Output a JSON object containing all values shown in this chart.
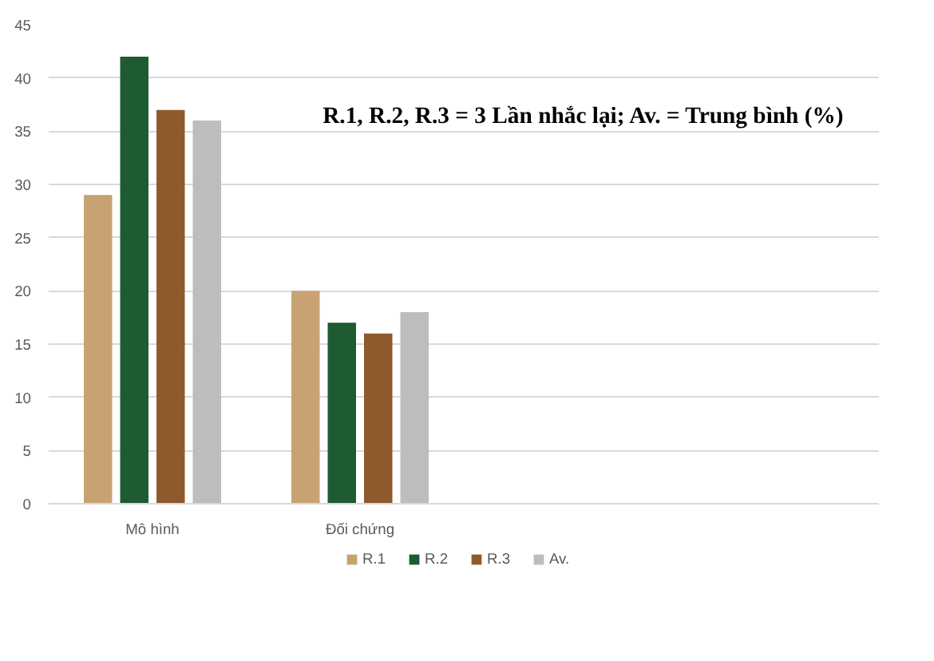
{
  "chart_data": {
    "type": "bar",
    "categories": [
      "Mô hình",
      "Đối chứng",
      null,
      null
    ],
    "series": [
      {
        "name": "R.1",
        "color": "#c9a273",
        "values": [
          29,
          20,
          null,
          null
        ]
      },
      {
        "name": "R.2",
        "color": "#1e5b32",
        "values": [
          42,
          17,
          null,
          null
        ]
      },
      {
        "name": "R.3",
        "color": "#8e5a2c",
        "values": [
          37,
          16,
          null,
          null
        ]
      },
      {
        "name": "Av.",
        "color": "#bdbdbd",
        "values": [
          36,
          18,
          null,
          null
        ]
      }
    ],
    "ylim": [
      0,
      45
    ],
    "yticks": [
      0,
      5,
      10,
      15,
      20,
      25,
      30,
      35,
      40,
      45
    ],
    "annotations": [
      "R.1, R.2, R.3 = 3 Lần nhắc lại; Av. = Trung bình (%)"
    ],
    "grid": "y",
    "legend": "bottom"
  }
}
